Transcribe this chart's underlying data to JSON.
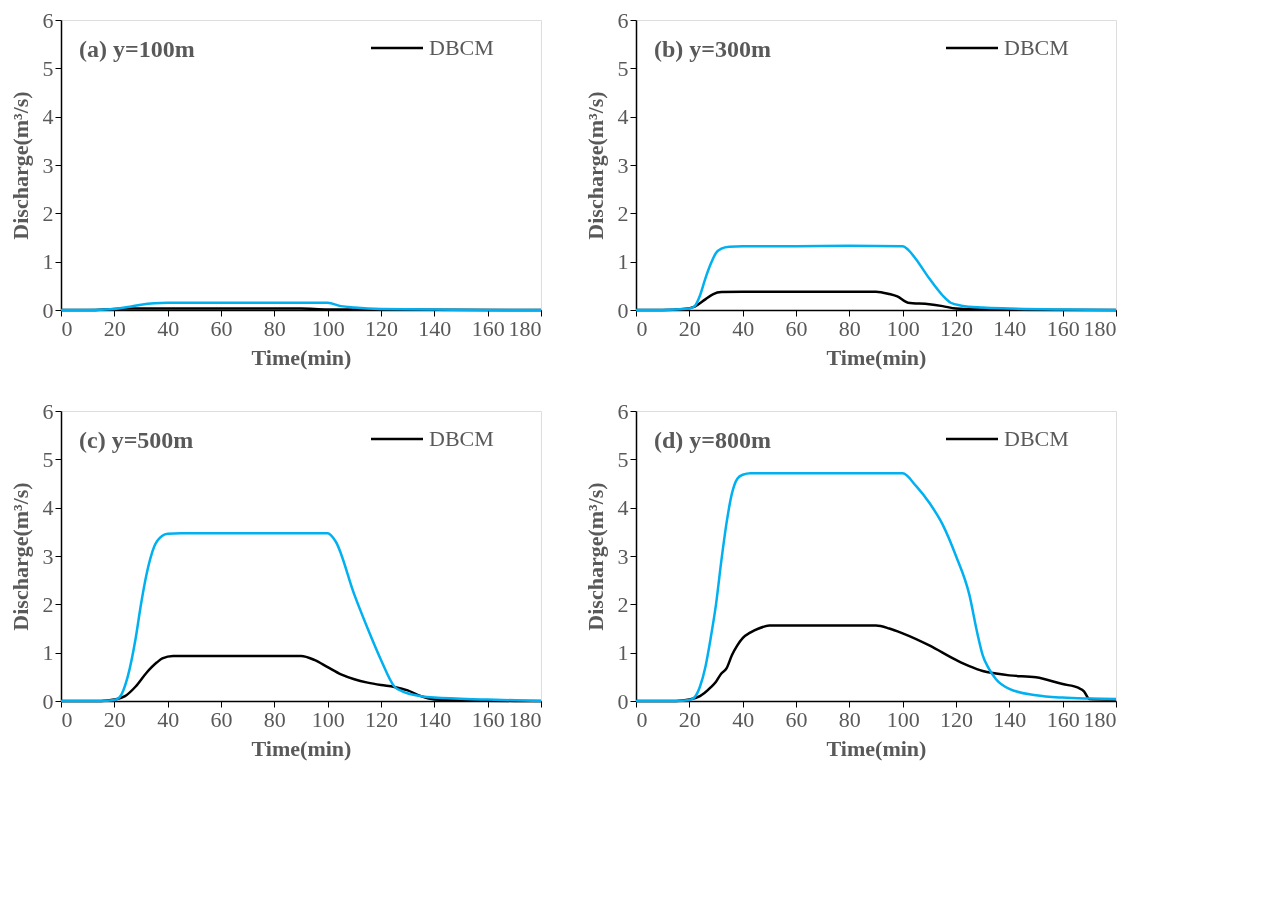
{
  "chart_data": [
    {
      "type": "line",
      "title": "(a) y=100m",
      "xlabel": "Time(min)",
      "ylabel": "Discharge(m³/s)",
      "xlim": [
        0,
        180
      ],
      "xticks": [
        0,
        20,
        40,
        60,
        80,
        100,
        120,
        140,
        160,
        180
      ],
      "ylim": [
        0,
        6
      ],
      "yticks": [
        0,
        1,
        2,
        3,
        4,
        5,
        6
      ],
      "grid": false,
      "legend": "top right",
      "series": [
        {
          "name": "DBCM",
          "color": "#000000",
          "x": [
            0,
            10,
            20,
            25,
            30,
            90,
            100,
            110,
            180
          ],
          "values": [
            0,
            0,
            0.02,
            0.03,
            0.03,
            0.03,
            0.01,
            0.01,
            0
          ]
        },
        {
          "color": "#00b0f0",
          "x": [
            0,
            10,
            20,
            25,
            30,
            35,
            40,
            100,
            105,
            110,
            120,
            140,
            160,
            180
          ],
          "values": [
            0,
            0,
            0.02,
            0.06,
            0.11,
            0.14,
            0.15,
            0.15,
            0.08,
            0.05,
            0.02,
            0.01,
            0,
            0
          ]
        }
      ]
    },
    {
      "type": "line",
      "title": "(b) y=300m",
      "xlabel": "Time(min)",
      "ylabel": "Discharge(m³/s)",
      "xlim": [
        0,
        180
      ],
      "xticks": [
        0,
        20,
        40,
        60,
        80,
        100,
        120,
        140,
        160,
        180
      ],
      "ylim": [
        0,
        6
      ],
      "yticks": [
        0,
        1,
        2,
        3,
        4,
        5,
        6
      ],
      "grid": false,
      "legend": "top right",
      "series": [
        {
          "name": "DBCM",
          "color": "#000000",
          "x": [
            0,
            10,
            18,
            22,
            26,
            29,
            32,
            40,
            60,
            80,
            90,
            95,
            98,
            102,
            110,
            115,
            120,
            130,
            180
          ],
          "values": [
            0,
            0,
            0.02,
            0.07,
            0.22,
            0.33,
            0.37,
            0.38,
            0.38,
            0.38,
            0.38,
            0.33,
            0.28,
            0.15,
            0.12,
            0.08,
            0.03,
            0.01,
            0
          ]
        },
        {
          "color": "#00b0f0",
          "x": [
            0,
            10,
            20,
            22,
            24,
            26,
            28,
            30,
            32,
            35,
            40,
            60,
            80,
            100,
            102,
            105,
            110,
            115,
            118,
            122,
            130,
            140,
            160,
            180
          ],
          "values": [
            0,
            0,
            0.03,
            0.08,
            0.3,
            0.65,
            0.95,
            1.18,
            1.27,
            1.31,
            1.32,
            1.32,
            1.33,
            1.32,
            1.25,
            1.05,
            0.65,
            0.3,
            0.15,
            0.09,
            0.05,
            0.03,
            0.01,
            0
          ]
        }
      ]
    },
    {
      "type": "line",
      "title": "(c) y=500m",
      "xlabel": "Time(min)",
      "ylabel": "Discharge(m³/s)",
      "xlim": [
        0,
        180
      ],
      "xticks": [
        0,
        20,
        40,
        60,
        80,
        100,
        120,
        140,
        160,
        180
      ],
      "ylim": [
        0,
        6
      ],
      "yticks": [
        0,
        1,
        2,
        3,
        4,
        5,
        6
      ],
      "grid": false,
      "legend": "top right",
      "series": [
        {
          "name": "DBCM",
          "color": "#000000",
          "x": [
            0,
            15,
            20,
            24,
            28,
            32,
            36,
            38,
            42,
            60,
            80,
            90,
            95,
            100,
            105,
            110,
            115,
            120,
            125,
            130,
            135,
            140,
            150,
            180
          ],
          "values": [
            0,
            0,
            0.03,
            0.1,
            0.3,
            0.58,
            0.8,
            0.88,
            0.93,
            0.93,
            0.93,
            0.93,
            0.85,
            0.7,
            0.55,
            0.45,
            0.38,
            0.33,
            0.29,
            0.22,
            0.1,
            0.03,
            0.01,
            0
          ]
        },
        {
          "color": "#00b0f0",
          "x": [
            0,
            15,
            20,
            22,
            25,
            28,
            30,
            32,
            35,
            38,
            40,
            45,
            60,
            80,
            100,
            103,
            110,
            115,
            120,
            125,
            128,
            135,
            140,
            160,
            180
          ],
          "values": [
            0,
            0,
            0.02,
            0.08,
            0.5,
            1.3,
            2.0,
            2.6,
            3.2,
            3.42,
            3.46,
            3.47,
            3.47,
            3.47,
            3.47,
            3.3,
            2.2,
            1.5,
            0.85,
            0.3,
            0.2,
            0.1,
            0.07,
            0.03,
            0
          ]
        }
      ]
    },
    {
      "type": "line",
      "title": "(d) y=800m",
      "xlabel": "Time(min)",
      "ylabel": "Discharge(m³/s)",
      "xlim": [
        0,
        180
      ],
      "xticks": [
        0,
        20,
        40,
        60,
        80,
        100,
        120,
        140,
        160,
        180
      ],
      "ylim": [
        0,
        6
      ],
      "yticks": [
        0,
        1,
        2,
        3,
        4,
        5,
        6
      ],
      "grid": false,
      "legend": "top right",
      "series": [
        {
          "name": "DBCM",
          "color": "#000000",
          "x": [
            0,
            15,
            20,
            24,
            28,
            30,
            32,
            34,
            36,
            38,
            40,
            43,
            46,
            50,
            60,
            80,
            90,
            95,
            100,
            110,
            120,
            125,
            130,
            135,
            140,
            150,
            160,
            166,
            168,
            170,
            180
          ],
          "values": [
            0,
            0,
            0.03,
            0.1,
            0.28,
            0.4,
            0.57,
            0.68,
            0.95,
            1.15,
            1.3,
            1.42,
            1.5,
            1.56,
            1.56,
            1.56,
            1.56,
            1.5,
            1.4,
            1.15,
            0.85,
            0.72,
            0.62,
            0.57,
            0.53,
            0.49,
            0.35,
            0.27,
            0.2,
            0.04,
            0.03
          ]
        },
        {
          "color": "#00b0f0",
          "x": [
            0,
            15,
            20,
            22,
            24,
            26,
            28,
            30,
            32,
            34,
            36,
            38,
            40,
            43,
            46,
            60,
            80,
            100,
            105,
            110,
            115,
            120,
            125,
            128,
            130,
            132,
            135,
            140,
            150,
            160,
            170,
            180
          ],
          "values": [
            0,
            0,
            0.02,
            0.08,
            0.3,
            0.7,
            1.3,
            2.0,
            2.9,
            3.7,
            4.3,
            4.6,
            4.68,
            4.71,
            4.71,
            4.71,
            4.71,
            4.71,
            4.45,
            4.1,
            3.65,
            3.0,
            2.2,
            1.4,
            0.95,
            0.7,
            0.45,
            0.25,
            0.12,
            0.07,
            0.05,
            0.04
          ]
        }
      ]
    }
  ]
}
